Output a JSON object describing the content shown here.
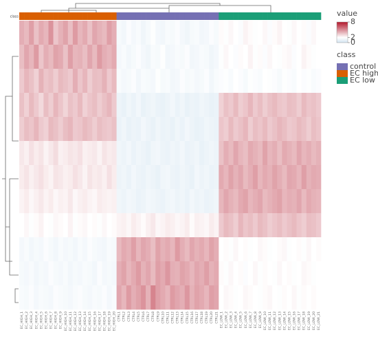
{
  "chart_data": {
    "type": "heatmap",
    "columns": [
      "EC_HIGH_1",
      "EC_HIGH_2",
      "EC_HIGH_3",
      "EC_HIGH_4",
      "EC_HIGH_5",
      "EC_HIGH_6",
      "EC_HIGH_7",
      "EC_HIGH_8",
      "EC_HIGH_9",
      "EC_HIGH_10",
      "EC_HIGH_11",
      "EC_HIGH_12",
      "EC_HIGH_13",
      "EC_HIGH_14",
      "EC_HIGH_15",
      "EC_HIGH_16",
      "EC_HIGH_17",
      "EC_HIGH_18",
      "EC_HIGH_19",
      "EC_HIGH_20",
      "CTRL1",
      "CTRL2",
      "CTRL3",
      "CTRL4",
      "CTRL5",
      "CTRL6",
      "CTRL7",
      "CTRL8",
      "CTRL9",
      "CTRL10",
      "CTRL11",
      "CTRL12",
      "CTRL13",
      "CTRL14",
      "CTRL15",
      "CTRL16",
      "CTRL17",
      "CTRL18",
      "CTRL19",
      "CTRL20",
      "CTRL21",
      "EC_LOW_1",
      "EC_LOW_2",
      "EC_LOW_3",
      "EC_LOW_4",
      "EC_LOW_5",
      "EC_LOW_6",
      "EC_LOW_7",
      "EC_LOW_8",
      "EC_LOW_9",
      "EC_LOW_10",
      "EC_LOW_11",
      "EC_LOW_12",
      "EC_LOW_13",
      "EC_LOW_14",
      "EC_LOW_15",
      "EC_LOW_16",
      "EC_LOW_17",
      "EC_LOW_18",
      "EC_LOW_19",
      "EC_LOW_20",
      "EC_LOW_21"
    ],
    "column_class": [
      "EC high",
      "EC high",
      "EC high",
      "EC high",
      "EC high",
      "EC high",
      "EC high",
      "EC high",
      "EC high",
      "EC high",
      "EC high",
      "EC high",
      "EC high",
      "EC high",
      "EC high",
      "EC high",
      "EC high",
      "EC high",
      "EC high",
      "EC high",
      "control",
      "control",
      "control",
      "control",
      "control",
      "control",
      "control",
      "control",
      "control",
      "control",
      "control",
      "control",
      "control",
      "control",
      "control",
      "control",
      "control",
      "control",
      "control",
      "control",
      "control",
      "EC low",
      "EC low",
      "EC low",
      "EC low",
      "EC low",
      "EC low",
      "EC low",
      "EC low",
      "EC low",
      "EC low",
      "EC low",
      "EC low",
      "EC low",
      "EC low",
      "EC low",
      "EC low",
      "EC low",
      "EC low",
      "EC low",
      "EC low",
      "EC low"
    ],
    "class_bar_label": "class",
    "values": [
      [
        4.1,
        3.8,
        4.5,
        3.6,
        4.2,
        3.9,
        4.8,
        3.5,
        4.0,
        4.4,
        3.7,
        4.6,
        3.9,
        4.2,
        3.6,
        4.3,
        4.0,
        3.8,
        4.5,
        4.1,
        1.6,
        1.4,
        1.8,
        1.5,
        1.7,
        1.3,
        1.6,
        1.9,
        1.5,
        1.4,
        1.7,
        1.6,
        1.8,
        1.5,
        1.3,
        1.6,
        1.7,
        1.4,
        1.5,
        1.8,
        1.6,
        2.1,
        1.9,
        2.2,
        2.0,
        1.8,
        2.3,
        2.1,
        1.9,
        2.0,
        2.2,
        1.8,
        2.1,
        2.3,
        2.0,
        1.9,
        2.2,
        2.0,
        2.1,
        1.8,
        2.2,
        2.0
      ],
      [
        3.7,
        4.3,
        3.9,
        4.6,
        3.5,
        4.1,
        3.8,
        4.4,
        4.2,
        3.6,
        4.5,
        3.9,
        4.0,
        3.7,
        4.3,
        3.8,
        4.6,
        4.1,
        3.9,
        4.2,
        1.5,
        1.7,
        1.4,
        1.6,
        1.8,
        1.5,
        1.3,
        1.7,
        1.6,
        1.9,
        1.4,
        1.5,
        1.7,
        1.6,
        1.8,
        1.4,
        1.5,
        1.7,
        1.6,
        1.3,
        1.5,
        1.9,
        2.2,
        2.0,
        1.8,
        2.1,
        2.0,
        2.3,
        1.9,
        2.1,
        1.8,
        2.2,
        2.0,
        1.9,
        2.1,
        2.2,
        1.8,
        2.0,
        2.3,
        2.1,
        1.9,
        2.0
      ],
      [
        3.4,
        3.9,
        3.6,
        3.2,
        4.0,
        3.5,
        3.7,
        3.3,
        3.8,
        3.6,
        3.4,
        4.1,
        3.5,
        3.9,
        3.3,
        3.7,
        3.6,
        4.0,
        3.4,
        3.8,
        1.7,
        1.5,
        1.6,
        1.8,
        1.4,
        1.7,
        1.6,
        1.5,
        1.9,
        1.6,
        1.7,
        1.4,
        1.5,
        1.8,
        1.6,
        1.7,
        1.5,
        1.6,
        1.8,
        1.4,
        1.7,
        1.8,
        1.9,
        1.7,
        2.0,
        1.8,
        1.6,
        1.9,
        1.8,
        1.7,
        2.0,
        1.9,
        1.8,
        1.6,
        1.9,
        1.8,
        1.7,
        2.0,
        1.8,
        1.9,
        1.7,
        1.8
      ],
      [
        3.6,
        3.2,
        3.8,
        3.4,
        3.0,
        3.7,
        3.3,
        3.9,
        3.5,
        3.1,
        3.6,
        3.4,
        3.8,
        3.2,
        3.5,
        3.7,
        3.3,
        3.6,
        3.9,
        3.4,
        1.2,
        1.0,
        1.3,
        1.1,
        1.4,
        1.0,
        1.2,
        1.3,
        1.1,
        1.0,
        1.2,
        1.4,
        1.1,
        1.3,
        1.0,
        1.2,
        1.1,
        1.3,
        1.2,
        1.0,
        1.1,
        3.2,
        3.6,
        3.4,
        3.8,
        3.3,
        3.5,
        3.9,
        3.4,
        3.7,
        3.3,
        3.6,
        3.8,
        3.5,
        3.4,
        3.7,
        3.6,
        3.3,
        3.8,
        3.5,
        3.6,
        3.4
      ],
      [
        3.3,
        3.7,
        3.5,
        3.9,
        3.4,
        3.2,
        3.8,
        3.6,
        3.3,
        3.7,
        3.9,
        3.4,
        3.5,
        3.8,
        3.6,
        3.3,
        3.7,
        3.5,
        3.4,
        3.6,
        1.1,
        1.3,
        1.0,
        1.2,
        1.1,
        1.4,
        1.2,
        1.0,
        1.3,
        1.1,
        1.2,
        1.0,
        1.3,
        1.1,
        1.4,
        1.2,
        1.0,
        1.1,
        1.3,
        1.2,
        1.1,
        3.5,
        3.3,
        3.8,
        3.4,
        3.6,
        3.9,
        3.3,
        3.7,
        3.5,
        3.8,
        3.4,
        3.6,
        3.9,
        3.7,
        3.4,
        3.5,
        3.8,
        3.6,
        3.3,
        3.7,
        3.5
      ],
      [
        2.6,
        2.4,
        2.8,
        2.5,
        2.7,
        2.3,
        2.6,
        2.9,
        2.4,
        2.5,
        2.7,
        2.6,
        2.8,
        2.4,
        2.5,
        2.6,
        2.3,
        2.7,
        2.5,
        2.6,
        1.3,
        1.2,
        1.4,
        1.1,
        1.3,
        1.2,
        1.0,
        1.3,
        1.4,
        1.2,
        1.1,
        1.3,
        1.2,
        1.4,
        1.1,
        1.2,
        1.3,
        1.0,
        1.2,
        1.3,
        1.2,
        3.6,
        4.1,
        3.8,
        4.3,
        3.9,
        3.7,
        4.2,
        4.0,
        3.8,
        4.4,
        3.9,
        4.1,
        3.7,
        4.2,
        4.0,
        3.8,
        4.3,
        3.9,
        4.1,
        3.8,
        4.0
      ],
      [
        2.5,
        2.7,
        2.4,
        2.6,
        2.8,
        2.5,
        2.3,
        2.7,
        2.6,
        2.4,
        2.5,
        2.8,
        2.6,
        2.3,
        2.7,
        2.5,
        2.6,
        2.4,
        2.8,
        2.5,
        1.2,
        1.3,
        1.1,
        1.4,
        1.2,
        1.1,
        1.3,
        1.2,
        1.0,
        1.3,
        1.4,
        1.2,
        1.1,
        1.3,
        1.2,
        1.0,
        1.4,
        1.2,
        1.3,
        1.1,
        1.2,
        4.2,
        3.9,
        4.4,
        4.0,
        4.3,
        3.8,
        4.1,
        4.5,
        3.9,
        4.2,
        4.0,
        4.4,
        4.1,
        3.8,
        4.3,
        4.2,
        3.9,
        4.5,
        4.0,
        4.2,
        4.1
      ],
      [
        2.3,
        2.5,
        2.2,
        2.4,
        2.6,
        2.3,
        2.5,
        2.2,
        2.4,
        2.3,
        2.6,
        2.2,
        2.4,
        2.5,
        2.3,
        2.2,
        2.5,
        2.4,
        2.3,
        2.4,
        1.3,
        1.2,
        1.4,
        1.3,
        1.1,
        1.2,
        1.4,
        1.3,
        1.2,
        1.1,
        1.3,
        1.4,
        1.2,
        1.3,
        1.1,
        1.4,
        1.2,
        1.3,
        1.1,
        1.2,
        1.3,
        3.9,
        4.3,
        4.0,
        3.8,
        4.2,
        4.4,
        3.9,
        4.1,
        4.3,
        3.8,
        4.0,
        4.2,
        4.4,
        3.9,
        4.1,
        4.0,
        4.3,
        3.8,
        4.2,
        4.0,
        3.9
      ],
      [
        2.0,
        2.2,
        1.9,
        2.1,
        2.3,
        2.0,
        1.9,
        2.2,
        2.1,
        2.0,
        2.3,
        1.9,
        2.1,
        2.2,
        2.0,
        2.1,
        1.9,
        2.2,
        2.0,
        2.1,
        2.3,
        2.4,
        2.2,
        2.5,
        2.3,
        2.1,
        2.4,
        2.6,
        2.2,
        2.3,
        2.5,
        2.4,
        2.2,
        2.3,
        2.5,
        2.1,
        2.4,
        2.3,
        2.2,
        2.5,
        2.3,
        3.4,
        3.8,
        3.6,
        3.3,
        3.9,
        3.5,
        3.7,
        3.4,
        3.8,
        3.6,
        3.3,
        3.5,
        3.7,
        3.4,
        3.6,
        3.8,
        3.5,
        3.3,
        3.7,
        3.6,
        3.4
      ],
      [
        1.5,
        1.7,
        1.4,
        1.6,
        1.5,
        1.8,
        1.6,
        1.4,
        1.7,
        1.5,
        1.6,
        1.4,
        1.7,
        1.5,
        1.8,
        1.6,
        1.5,
        1.4,
        1.7,
        1.6,
        3.8,
        4.2,
        4.0,
        4.5,
        3.9,
        4.3,
        4.1,
        3.7,
        4.4,
        4.0,
        4.2,
        3.9,
        4.6,
        4.1,
        3.8,
        4.3,
        4.0,
        4.2,
        3.9,
        4.4,
        4.1,
        2.0,
        2.1,
        1.9,
        2.2,
        2.0,
        2.1,
        1.9,
        2.0,
        2.2,
        2.1,
        1.9,
        2.0,
        2.1,
        2.2,
        1.9,
        2.0,
        2.1,
        1.9,
        2.2,
        2.0,
        2.1
      ],
      [
        1.6,
        1.5,
        1.7,
        1.4,
        1.6,
        1.5,
        1.8,
        1.6,
        1.5,
        1.7,
        1.4,
        1.6,
        1.5,
        1.7,
        1.6,
        1.4,
        1.8,
        1.5,
        1.6,
        1.5,
        4.1,
        4.4,
        3.9,
        4.2,
        4.6,
        4.0,
        4.3,
        3.8,
        4.5,
        4.2,
        4.7,
        4.1,
        4.0,
        4.4,
        4.2,
        3.9,
        4.3,
        4.1,
        4.5,
        4.0,
        4.2,
        2.1,
        1.9,
        2.2,
        2.0,
        2.1,
        1.8,
        2.0,
        2.2,
        1.9,
        2.1,
        2.0,
        1.9,
        2.2,
        2.0,
        2.1,
        1.9,
        2.0,
        2.2,
        2.1,
        1.9,
        2.0
      ],
      [
        1.7,
        1.6,
        1.8,
        1.5,
        1.7,
        1.6,
        1.5,
        1.8,
        1.7,
        1.6,
        1.5,
        1.7,
        1.8,
        1.6,
        1.5,
        1.7,
        1.6,
        1.8,
        1.5,
        1.7,
        4.3,
        3.9,
        4.6,
        4.1,
        4.4,
        4.8,
        4.0,
        5.2,
        4.5,
        4.2,
        3.9,
        4.6,
        4.3,
        4.1,
        4.7,
        4.0,
        4.4,
        4.2,
        3.9,
        4.5,
        4.3,
        2.0,
        2.2,
        2.1,
        1.9,
        2.0,
        2.2,
        2.1,
        2.0,
        1.9,
        2.1,
        2.2,
        2.0,
        1.9,
        2.1,
        2.0,
        2.2,
        1.9,
        2.1,
        2.0,
        2.1,
        2.0
      ]
    ],
    "colorbar_title": "value",
    "colorbar_ticks": [
      8,
      0,
      2
    ],
    "zlim": [
      0,
      8
    ],
    "zmid": 2,
    "colors": {
      "low": "#d3e4f1",
      "mid": "#ffffff",
      "high": "#b2182b"
    },
    "legend_title": "class",
    "classes": [
      {
        "name": "control",
        "color": "#7570b3"
      },
      {
        "name": "EC high",
        "color": "#d95f02"
      },
      {
        "name": "EC low",
        "color": "#1b9e77"
      }
    ]
  }
}
